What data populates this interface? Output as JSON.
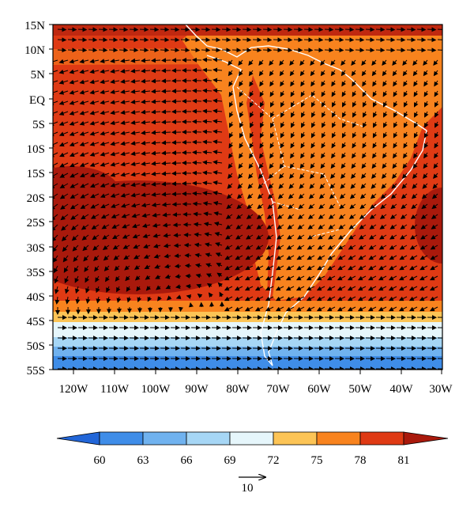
{
  "map": {
    "lat_labels": [
      "15N",
      "10N",
      "5N",
      "EQ",
      "5S",
      "10S",
      "15S",
      "20S",
      "25S",
      "30S",
      "35S",
      "40S",
      "45S",
      "50S",
      "55S"
    ],
    "lon_labels": [
      "120W",
      "110W",
      "100W",
      "90W",
      "80W",
      "70W",
      "60W",
      "50W",
      "40W",
      "30W"
    ],
    "extent": {
      "lon_min": -125,
      "lon_max": -30,
      "lat_min": -55,
      "lat_max": 15
    }
  },
  "colorbar": {
    "levels": [
      "60",
      "63",
      "66",
      "69",
      "72",
      "75",
      "78",
      "81"
    ],
    "colors": [
      "#2266d8",
      "#3f8de8",
      "#70b2ef",
      "#a6d6f5",
      "#e6f6fb",
      "#fcc456",
      "#f8831e",
      "#df3a14",
      "#a9190c"
    ]
  },
  "reference_vector": {
    "label": "10"
  }
}
